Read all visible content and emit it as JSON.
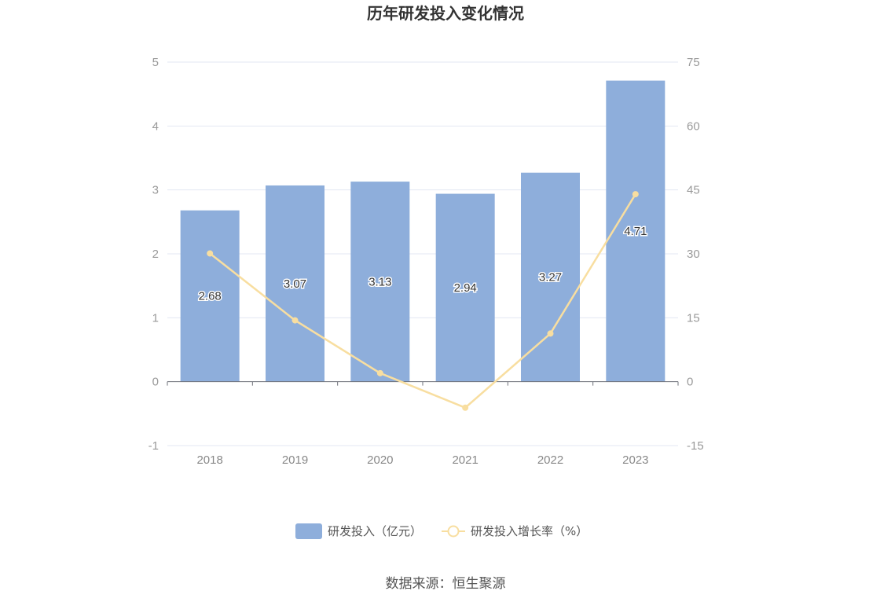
{
  "chart_data": {
    "type": "bar",
    "title": "历年研发投入变化情况",
    "categories": [
      "2018",
      "2019",
      "2020",
      "2021",
      "2022",
      "2023"
    ],
    "series": [
      {
        "name": "研发投入（亿元）",
        "type": "bar",
        "axis": "left",
        "color": "#8eaedb",
        "values": [
          2.68,
          3.07,
          3.13,
          2.94,
          3.27,
          4.71
        ]
      },
      {
        "name": "研发投入增长率（%）",
        "type": "line",
        "axis": "right",
        "color": "#f8dea0",
        "values": [
          30.1,
          14.4,
          2.0,
          -6.1,
          11.3,
          44.0
        ]
      }
    ],
    "y_left": {
      "min": -1,
      "max": 5,
      "ticks": [
        "-1",
        "0",
        "1",
        "2",
        "3",
        "4",
        "5"
      ]
    },
    "y_right": {
      "min": -15,
      "max": 75,
      "ticks": [
        "-15",
        "0",
        "15",
        "30",
        "45",
        "60",
        "75"
      ]
    },
    "bar_labels": [
      "2.68",
      "3.07",
      "3.13",
      "2.94",
      "3.27",
      "4.71"
    ],
    "grid": true,
    "legend_position": "bottom-center"
  },
  "source_text": "数据来源：恒生聚源"
}
